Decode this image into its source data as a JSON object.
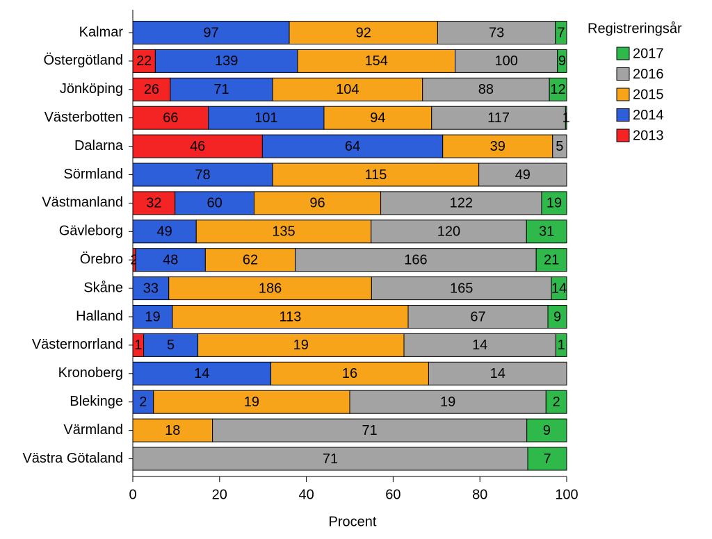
{
  "chart_data": {
    "type": "stacked100",
    "xlabel": "Procent",
    "legend_title": "Registreringsår",
    "legend": "right",
    "categories": [
      "Kalmar",
      "Östergötland",
      "Jönköping",
      "Västerbotten",
      "Dalarna",
      "Sörmland",
      "Västmanland",
      "Gävleborg",
      "Örebro",
      "Skåne",
      "Halland",
      "Västernorrland",
      "Kronoberg",
      "Blekinge",
      "Värmland",
      "Västra Götaland"
    ],
    "series": [
      {
        "name": "2013",
        "color": "#f42424",
        "values": [
          null,
          22,
          26,
          66,
          46,
          null,
          32,
          null,
          2,
          null,
          null,
          1,
          null,
          null,
          null,
          null
        ]
      },
      {
        "name": "2014",
        "color": "#2e5fdb",
        "values": [
          97,
          139,
          71,
          101,
          64,
          78,
          60,
          49,
          48,
          33,
          19,
          5,
          14,
          2,
          null,
          null
        ]
      },
      {
        "name": "2015",
        "color": "#f7a41b",
        "values": [
          92,
          154,
          104,
          94,
          39,
          115,
          96,
          135,
          62,
          186,
          113,
          19,
          16,
          19,
          18,
          null
        ]
      },
      {
        "name": "2016",
        "color": "#a3a3a3",
        "values": [
          73,
          100,
          88,
          117,
          5,
          49,
          122,
          120,
          166,
          165,
          67,
          14,
          14,
          19,
          71,
          71
        ]
      },
      {
        "name": "2017",
        "color": "#2fb94b",
        "values": [
          7,
          9,
          12,
          1,
          null,
          null,
          19,
          31,
          21,
          14,
          9,
          1,
          null,
          2,
          9,
          7
        ]
      }
    ],
    "xlim": [
      0,
      100
    ],
    "xticks": [
      0,
      20,
      40,
      60,
      80,
      100
    ]
  }
}
